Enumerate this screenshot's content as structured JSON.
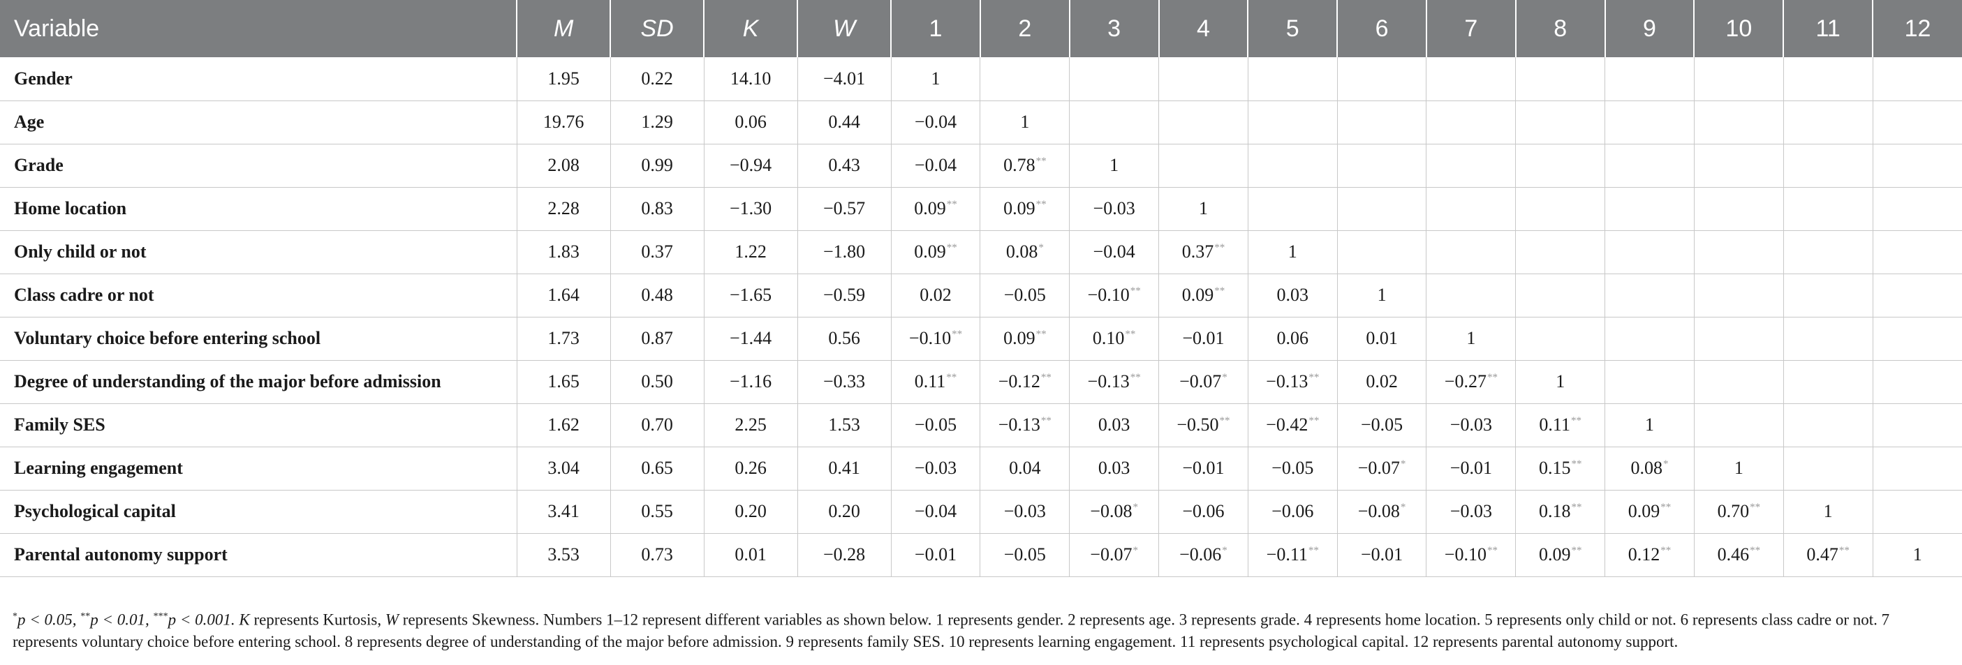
{
  "columns": [
    "Variable",
    "M",
    "SD",
    "K",
    "W",
    "1",
    "2",
    "3",
    "4",
    "5",
    "6",
    "7",
    "8",
    "9",
    "10",
    "11",
    "12"
  ],
  "rows": [
    {
      "label": "Gender",
      "cells": [
        "1.95",
        "0.22",
        "14.10",
        "−4.01",
        "1",
        "",
        "",
        "",
        "",
        "",
        "",
        "",
        "",
        "",
        "",
        ""
      ],
      "sig": [
        "",
        "",
        "",
        "",
        "",
        "",
        "",
        "",
        "",
        "",
        "",
        "",
        "",
        "",
        "",
        ""
      ]
    },
    {
      "label": "Age",
      "cells": [
        "19.76",
        "1.29",
        "0.06",
        "0.44",
        "−0.04",
        "1",
        "",
        "",
        "",
        "",
        "",
        "",
        "",
        "",
        "",
        ""
      ],
      "sig": [
        "",
        "",
        "",
        "",
        "",
        "",
        "",
        "",
        "",
        "",
        "",
        "",
        "",
        "",
        "",
        ""
      ]
    },
    {
      "label": "Grade",
      "cells": [
        "2.08",
        "0.99",
        "−0.94",
        "0.43",
        "−0.04",
        "0.78",
        "1",
        "",
        "",
        "",
        "",
        "",
        "",
        "",
        "",
        ""
      ],
      "sig": [
        "",
        "",
        "",
        "",
        "",
        "**",
        "",
        "",
        "",
        "",
        "",
        "",
        "",
        "",
        "",
        ""
      ]
    },
    {
      "label": "Home location",
      "cells": [
        "2.28",
        "0.83",
        "−1.30",
        "−0.57",
        "0.09",
        "0.09",
        "−0.03",
        "1",
        "",
        "",
        "",
        "",
        "",
        "",
        "",
        ""
      ],
      "sig": [
        "",
        "",
        "",
        "",
        "**",
        "**",
        "",
        "",
        "",
        "",
        "",
        "",
        "",
        "",
        "",
        ""
      ]
    },
    {
      "label": "Only child or not",
      "cells": [
        "1.83",
        "0.37",
        "1.22",
        "−1.80",
        "0.09",
        "0.08",
        "−0.04",
        "0.37",
        "1",
        "",
        "",
        "",
        "",
        "",
        "",
        ""
      ],
      "sig": [
        "",
        "",
        "",
        "",
        "**",
        "*",
        "",
        "**",
        "",
        "",
        "",
        "",
        "",
        "",
        "",
        ""
      ]
    },
    {
      "label": "Class cadre or not",
      "cells": [
        "1.64",
        "0.48",
        "−1.65",
        "−0.59",
        "0.02",
        "−0.05",
        "−0.10",
        "0.09",
        "0.03",
        "1",
        "",
        "",
        "",
        "",
        "",
        ""
      ],
      "sig": [
        "",
        "",
        "",
        "",
        "",
        "",
        "**",
        "**",
        "",
        "",
        "",
        "",
        "",
        "",
        "",
        ""
      ]
    },
    {
      "label": "Voluntary choice before entering school",
      "cells": [
        "1.73",
        "0.87",
        "−1.44",
        "0.56",
        "−0.10",
        "0.09",
        "0.10",
        "−0.01",
        "0.06",
        "0.01",
        "1",
        "",
        "",
        "",
        "",
        ""
      ],
      "sig": [
        "",
        "",
        "",
        "",
        "**",
        "**",
        "**",
        "",
        "",
        "",
        "",
        "",
        "",
        "",
        "",
        ""
      ]
    },
    {
      "label": "Degree of understanding of the major before admission",
      "cells": [
        "1.65",
        "0.50",
        "−1.16",
        "−0.33",
        "0.11",
        "−0.12",
        "−0.13",
        "−0.07",
        "−0.13",
        "0.02",
        "−0.27",
        "1",
        "",
        "",
        "",
        ""
      ],
      "sig": [
        "",
        "",
        "",
        "",
        "**",
        "**",
        "**",
        "*",
        "**",
        "",
        "**",
        "",
        "",
        "",
        "",
        ""
      ]
    },
    {
      "label": "Family SES",
      "cells": [
        "1.62",
        "0.70",
        "2.25",
        "1.53",
        "−0.05",
        "−0.13",
        "0.03",
        "−0.50",
        "−0.42",
        "−0.05",
        "−0.03",
        "0.11",
        "1",
        "",
        "",
        ""
      ],
      "sig": [
        "",
        "",
        "",
        "",
        "",
        "**",
        "",
        "**",
        "**",
        "",
        "",
        "**",
        "",
        "",
        "",
        ""
      ]
    },
    {
      "label": "Learning engagement",
      "cells": [
        "3.04",
        "0.65",
        "0.26",
        "0.41",
        "−0.03",
        "0.04",
        "0.03",
        "−0.01",
        "−0.05",
        "−0.07",
        "−0.01",
        "0.15",
        "0.08",
        "1",
        "",
        ""
      ],
      "sig": [
        "",
        "",
        "",
        "",
        "",
        "",
        "",
        "",
        "",
        "*",
        "",
        "**",
        "*",
        "",
        "",
        ""
      ]
    },
    {
      "label": "Psychological capital",
      "cells": [
        "3.41",
        "0.55",
        "0.20",
        "0.20",
        "−0.04",
        "−0.03",
        "−0.08",
        "−0.06",
        "−0.06",
        "−0.08",
        "−0.03",
        "0.18",
        "0.09",
        "0.70",
        "1",
        ""
      ],
      "sig": [
        "",
        "",
        "",
        "",
        "",
        "",
        "*",
        "",
        "",
        "*",
        "",
        "**",
        "**",
        "**",
        "",
        ""
      ]
    },
    {
      "label": "Parental autonomy support",
      "cells": [
        "3.53",
        "0.73",
        "0.01",
        "−0.28",
        "−0.01",
        "−0.05",
        "−0.07",
        "−0.06",
        "−0.11",
        "−0.01",
        "−0.10",
        "0.09",
        "0.12",
        "0.46",
        "0.47",
        "1"
      ],
      "sig": [
        "",
        "",
        "",
        "",
        "",
        "",
        "*",
        "*",
        "**",
        "",
        "**",
        "**",
        "**",
        "**",
        "**",
        ""
      ]
    }
  ],
  "note": {
    "p1_mark": "*",
    "p1_text": "p < 0.05, ",
    "p2_mark": "**",
    "p2_text": "p < 0.01, ",
    "p3_mark": "***",
    "p3_text": "p < 0.001. ",
    "k_letter": "K",
    "k_text": " represents Kurtosis, ",
    "w_letter": "W",
    "w_text": " represents Skewness. Numbers 1–12 represent different variables as shown below. 1 represents gender. 2 represents age. 3 represents grade. 4 represents home location. 5 represents only child or not. 6 represents class cadre or not. 7 represents voluntary choice before entering school. 8 represents degree of understanding of the major before admission. 9 represents family SES. 10 represents learning engagement. 11 represents psychological capital. 12 represents parental autonomy support."
  }
}
